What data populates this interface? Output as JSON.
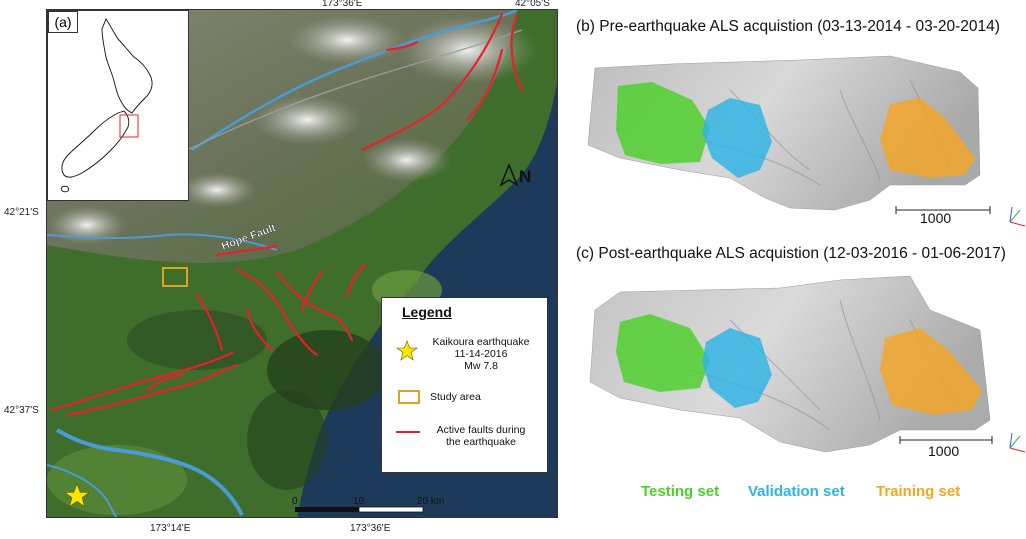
{
  "map_panel": {
    "label": "(a)",
    "coords": {
      "top_lon": "173°36'E",
      "top_right_lat": "42°05'S",
      "left_lat_1": "42°21'S",
      "left_lat_2": "42°37'S",
      "bottom_lon_1": "173°14'E",
      "bottom_lon_2": "173°36'E"
    },
    "fault_label": "Hope Fault",
    "north_label": "N",
    "scale": {
      "ticks": [
        "0",
        "10",
        "20 km"
      ]
    },
    "legend": {
      "title": "Legend",
      "earthquake_lines": [
        "Kaikoura earthquake",
        "11-14-2016",
        "Mw 7.8"
      ],
      "study_area": "Study area",
      "faults_lines": [
        "Active faults during",
        "the earthquake"
      ]
    },
    "colors": {
      "fault": "#e8202a",
      "study_area": "#e0a21a",
      "star": "#ffe600",
      "river": "#4a9bd8"
    }
  },
  "panel_b": {
    "title": "(b) Pre-earthquake ALS acquistion (03-13-2014 - 03-20-2014)",
    "scale_label": "1000"
  },
  "panel_c": {
    "title": "(c) Post-earthquake ALS acquistion (12-03-2016 - 01-06-2017)",
    "scale_label": "1000"
  },
  "sets": {
    "testing": {
      "label": "Testing set",
      "color": "#4ccf2a"
    },
    "validation": {
      "label": "Validation set",
      "color": "#2eb3e6"
    },
    "training": {
      "label": "Training set",
      "color": "#f5a623"
    }
  }
}
